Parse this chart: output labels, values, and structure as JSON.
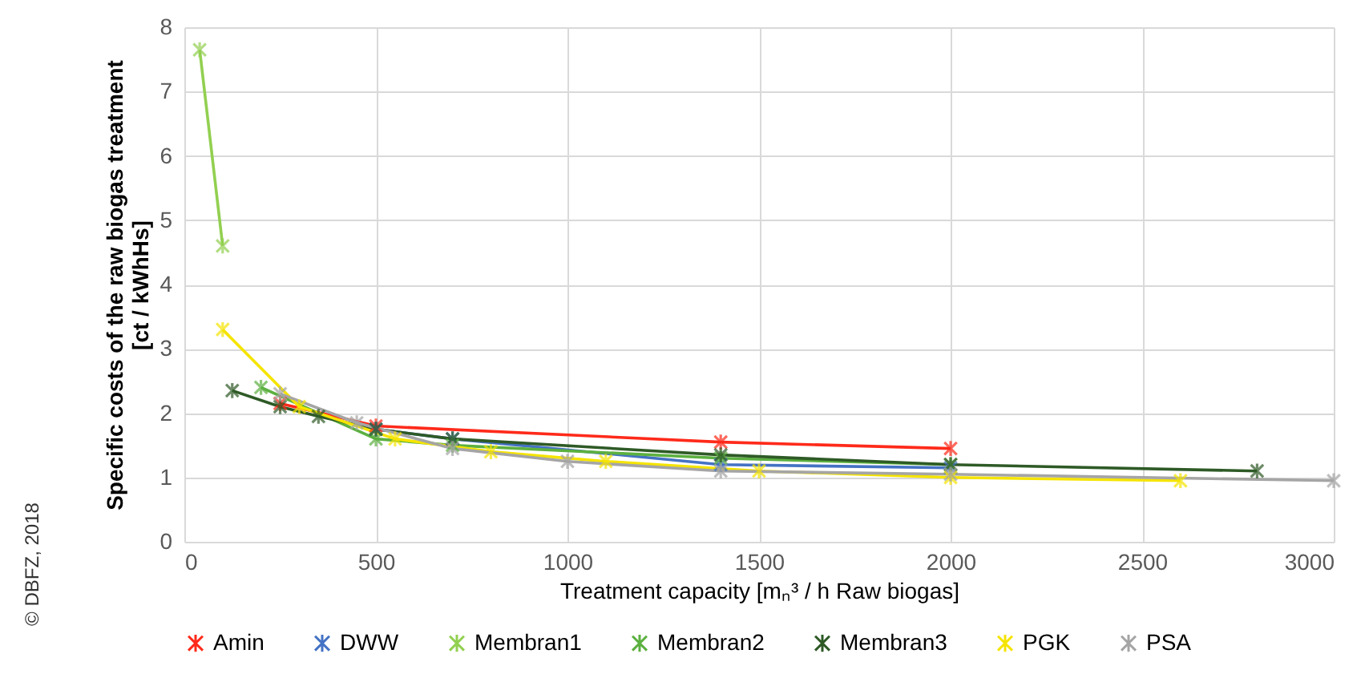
{
  "chart_data": {
    "type": "line",
    "xlabel": "Treatment capacity [mₙ³ / h Raw biogas]",
    "ylabel": "Specific costs of the raw biogas treatment\n[ct / kWhHs]",
    "xlim": [
      0,
      3000
    ],
    "xticks": [
      0,
      500,
      1000,
      1500,
      2000,
      2500,
      3000
    ],
    "ylim": [
      0,
      8
    ],
    "yticks": [
      0,
      1,
      2,
      3,
      4,
      5,
      6,
      7,
      8
    ],
    "grid": true,
    "legend": "bottom",
    "marker": "cross",
    "line_style": "solid",
    "annotations": [
      "© DBFZ, 2018"
    ],
    "series": [
      {
        "name": "Amin",
        "color": "#ff2a1a",
        "x": [
          250,
          500,
          1400,
          2000
        ],
        "values": [
          2.15,
          1.8,
          1.55,
          1.45
        ]
      },
      {
        "name": "DWW",
        "color": "#4472c4",
        "x": [
          500,
          700,
          1400,
          2000
        ],
        "values": [
          1.75,
          1.6,
          1.2,
          1.15
        ]
      },
      {
        "name": "Membran1",
        "color": "#92d050",
        "x": [
          40,
          100
        ],
        "values": [
          7.65,
          4.6
        ]
      },
      {
        "name": "Membran2",
        "color": "#5cb040",
        "x": [
          200,
          500,
          700,
          1400,
          2000
        ],
        "values": [
          2.4,
          1.6,
          1.5,
          1.3,
          1.2
        ]
      },
      {
        "name": "Membran3",
        "color": "#2e5a26",
        "x": [
          125,
          250,
          350,
          500,
          700,
          1400,
          2000,
          2800
        ],
        "values": [
          2.35,
          2.1,
          1.95,
          1.75,
          1.6,
          1.35,
          1.2,
          1.1
        ]
      },
      {
        "name": "PGK",
        "color": "#f5e400",
        "x": [
          100,
          300,
          550,
          800,
          1100,
          1500,
          2000,
          2600
        ],
        "values": [
          3.3,
          2.1,
          1.6,
          1.4,
          1.25,
          1.1,
          1.0,
          0.95
        ]
      },
      {
        "name": "PSA",
        "color": "#a5a5a5",
        "x": [
          250,
          450,
          700,
          1000,
          1400,
          2000,
          3000
        ],
        "values": [
          2.3,
          1.85,
          1.45,
          1.25,
          1.1,
          1.05,
          0.95
        ]
      }
    ]
  }
}
